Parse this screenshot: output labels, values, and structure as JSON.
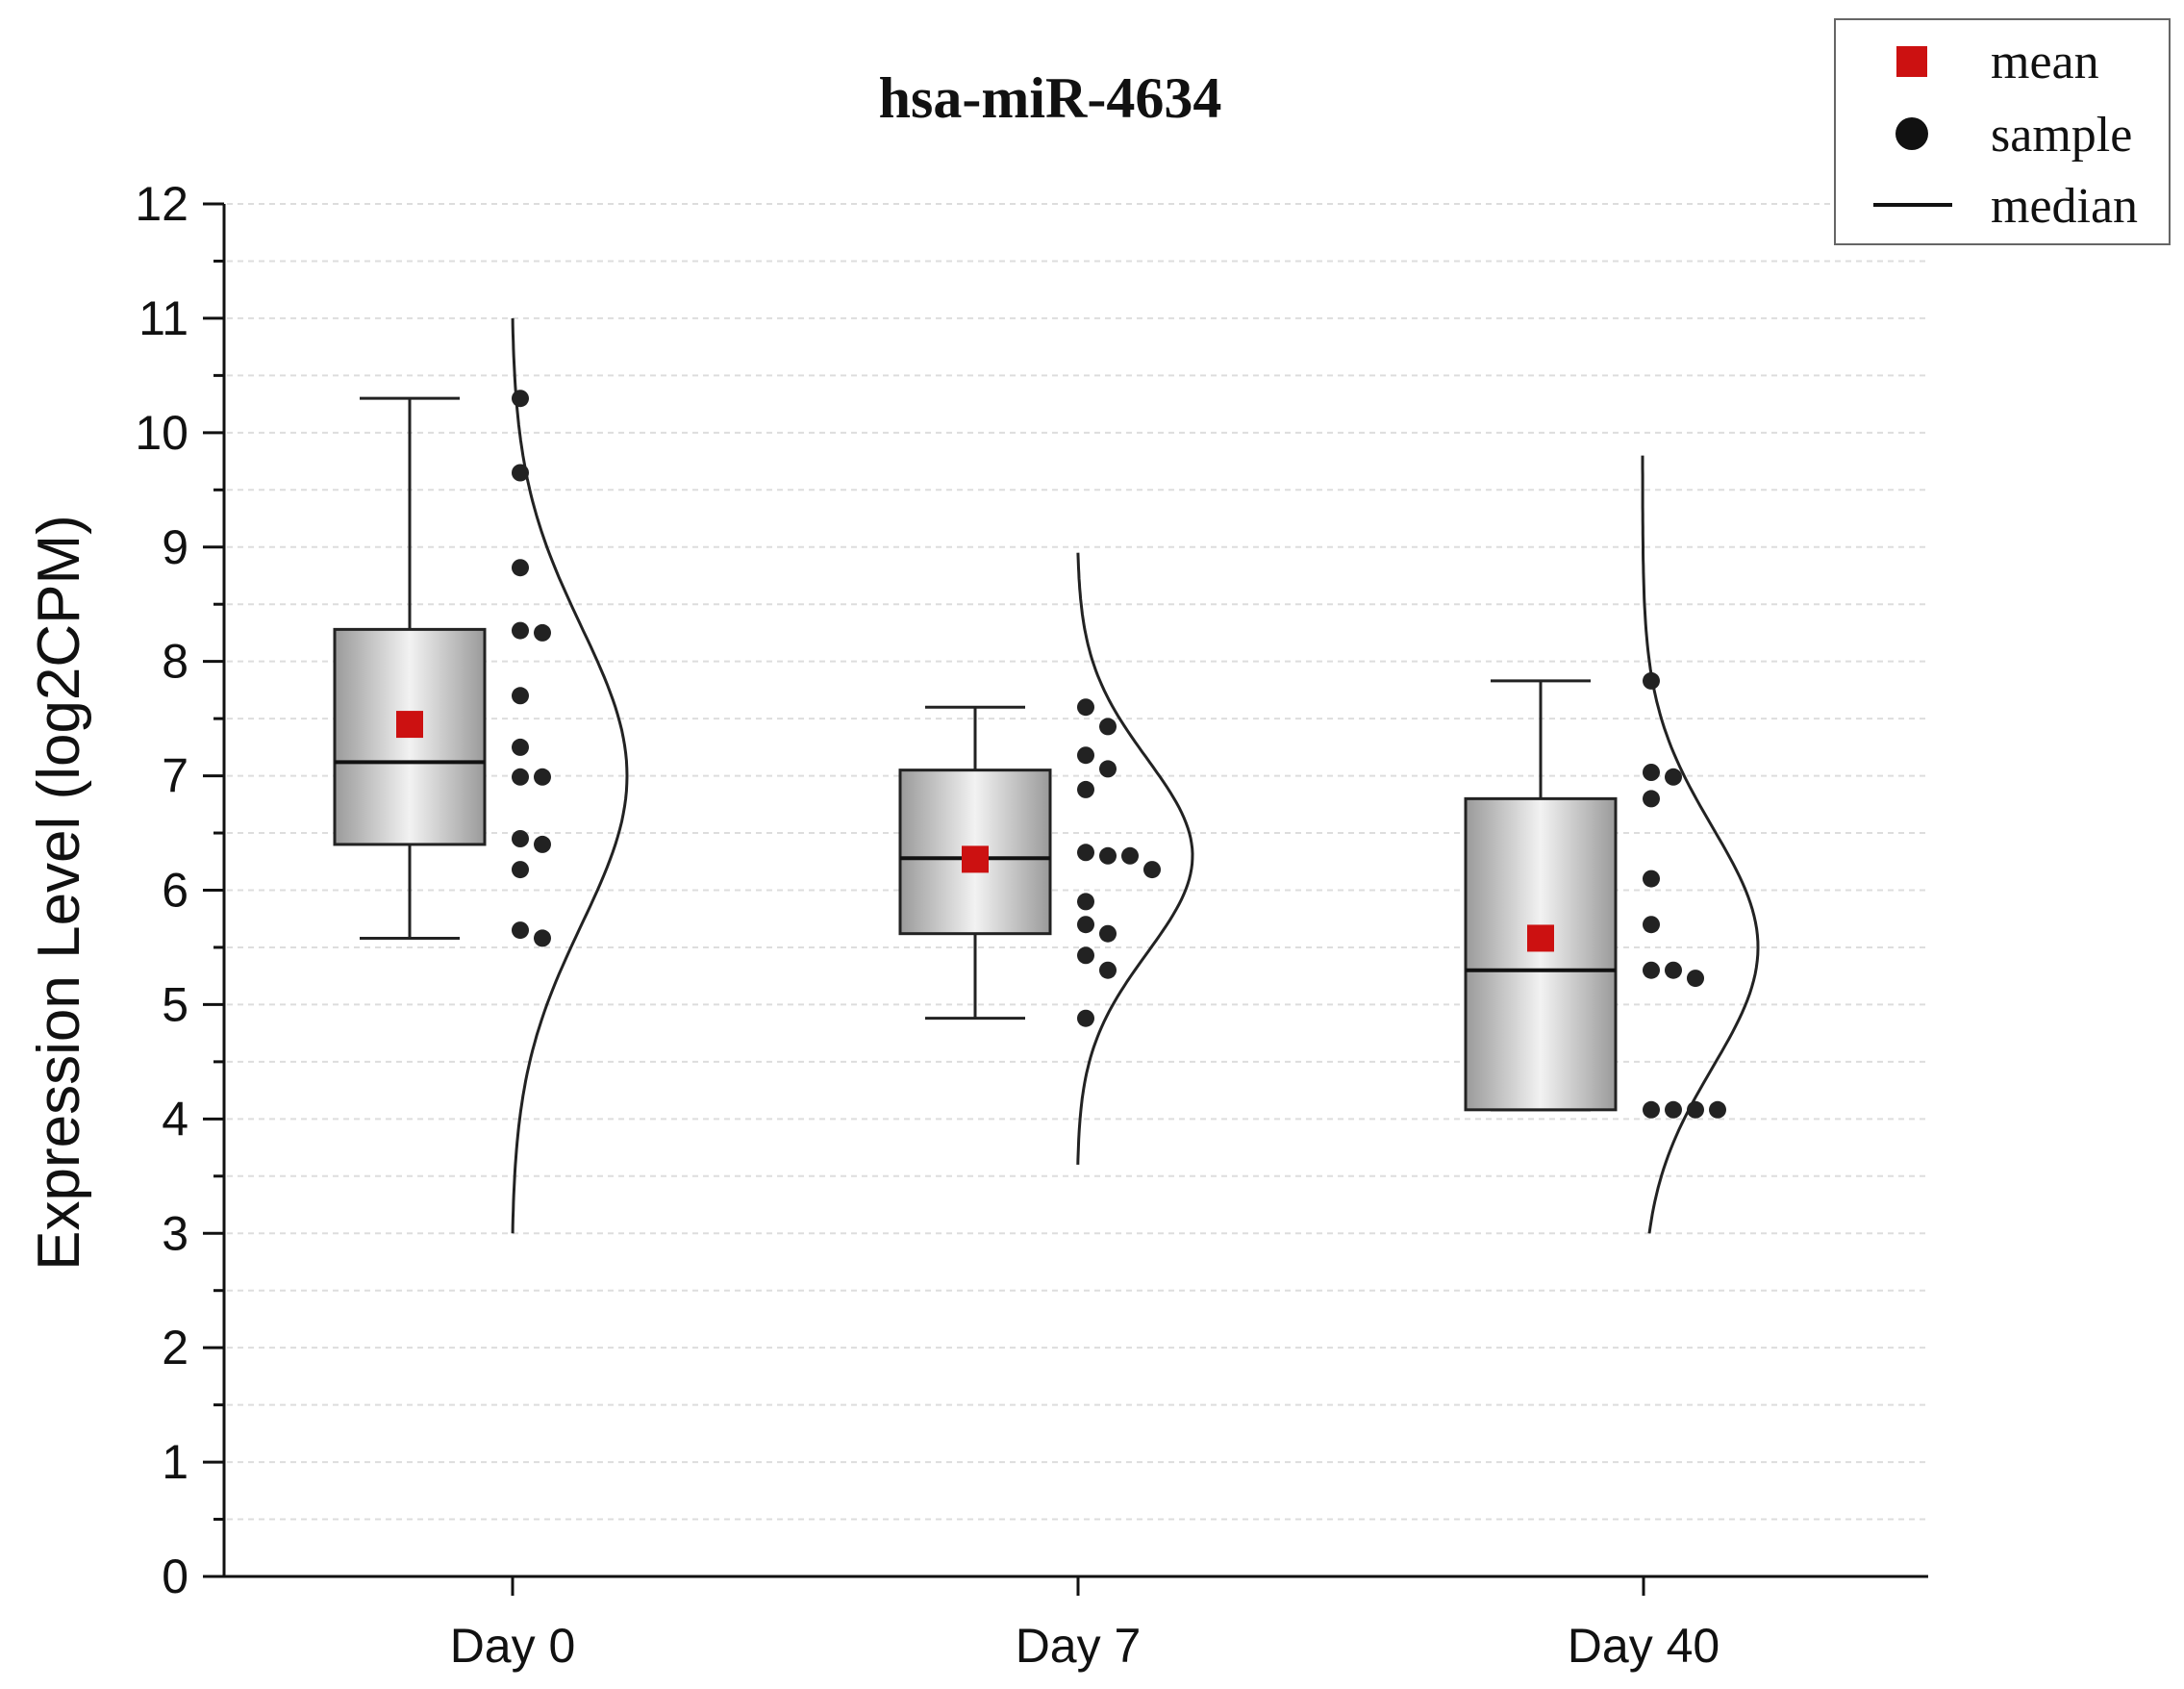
{
  "chart_data": {
    "type": "box",
    "title": "hsa-miR-4634",
    "xlabel": "",
    "ylabel": "Expression Level (log2CPM)",
    "ylim": [
      0,
      12
    ],
    "yticks": [
      "0",
      "1",
      "2",
      "3",
      "4",
      "5",
      "6",
      "7",
      "8",
      "9",
      "10",
      "11",
      "12"
    ],
    "grid": true,
    "legend_position": "top-right",
    "legend": [
      {
        "label": "mean",
        "symbol": "square",
        "color": "#cc1111"
      },
      {
        "label": "sample",
        "symbol": "circle",
        "color": "#111111"
      },
      {
        "label": "median",
        "symbol": "line",
        "color": "#111111"
      }
    ],
    "categories": [
      "Day 0",
      "Day 7",
      "Day 40"
    ],
    "groups": [
      {
        "category": "Day 0",
        "whisker_low": 5.58,
        "q1": 6.4,
        "median": 7.12,
        "q3": 8.28,
        "whisker_high": 10.3,
        "mean": 7.45,
        "samples": [
          10.3,
          9.65,
          8.82,
          8.27,
          8.25,
          7.7,
          7.25,
          6.99,
          6.99,
          6.45,
          6.4,
          6.18,
          5.65,
          5.58
        ],
        "density": {
          "mean": 7.0,
          "sd": 1.3,
          "range": [
            3.0,
            11.0
          ]
        }
      },
      {
        "category": "Day 7",
        "whisker_low": 4.88,
        "q1": 5.62,
        "median": 6.28,
        "q3": 7.05,
        "whisker_high": 7.6,
        "mean": 6.27,
        "samples": [
          7.6,
          7.43,
          7.18,
          7.06,
          6.88,
          6.33,
          6.3,
          6.3,
          6.18,
          5.9,
          5.7,
          5.62,
          5.43,
          5.3,
          4.88
        ],
        "density": {
          "mean": 6.3,
          "sd": 0.85,
          "range": [
            3.6,
            8.95
          ]
        }
      },
      {
        "category": "Day 40",
        "whisker_low": 4.08,
        "q1": 4.08,
        "median": 5.3,
        "q3": 6.8,
        "whisker_high": 7.83,
        "mean": 5.58,
        "samples": [
          7.83,
          7.03,
          6.99,
          6.8,
          6.1,
          5.7,
          5.3,
          5.3,
          5.23,
          4.08,
          4.08,
          4.08,
          4.08
        ],
        "density": {
          "mean": 5.5,
          "sd": 1.05,
          "range": [
            3.0,
            9.8
          ]
        }
      }
    ]
  }
}
